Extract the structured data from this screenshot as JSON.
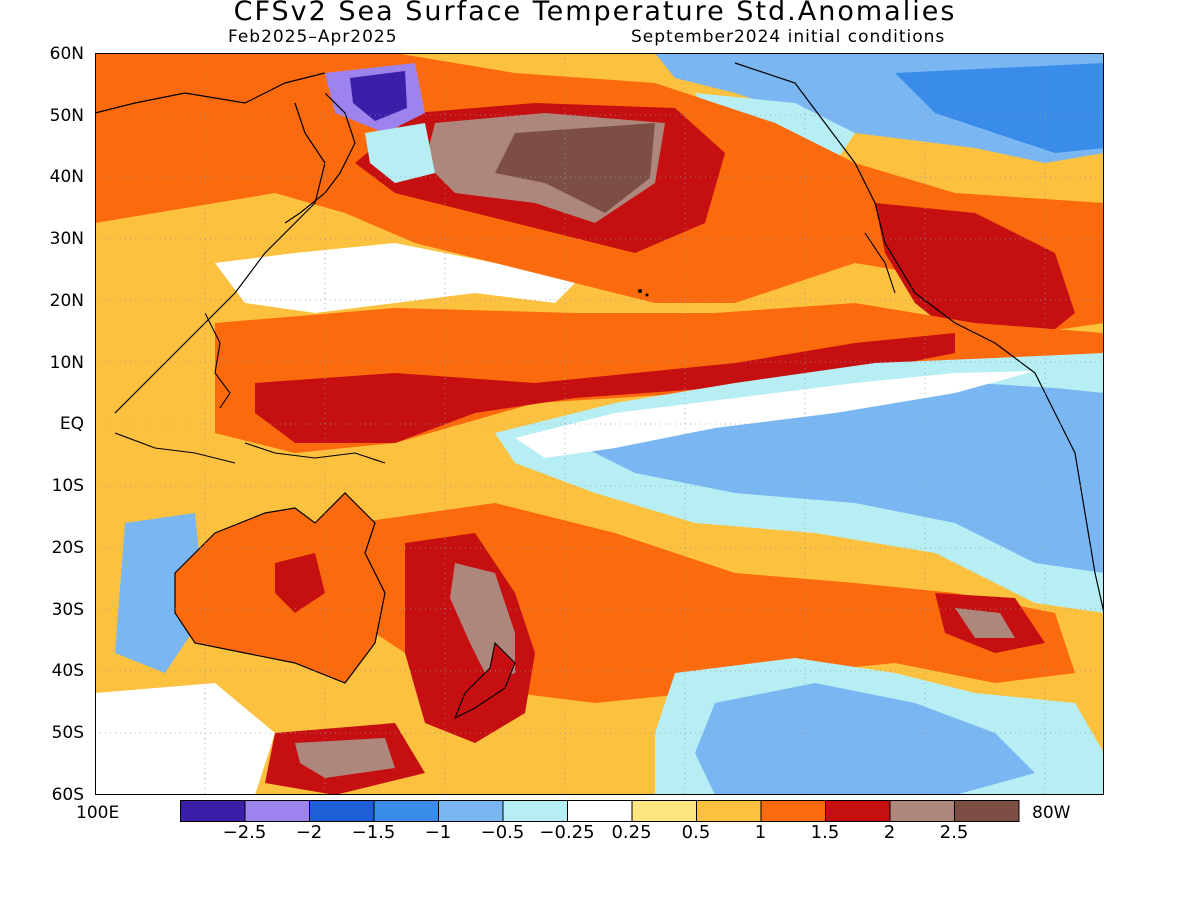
{
  "title": "CFSv2 Sea Surface Temperature Std.Anomalies",
  "period": "Feb2025–Apr2025",
  "initial_conditions": "September2024 initial conditions",
  "lat_labels": [
    "60N",
    "50N",
    "40N",
    "30N",
    "20N",
    "10N",
    "EQ",
    "10S",
    "20S",
    "30S",
    "40S",
    "50S",
    "60S"
  ],
  "lon_labels": {
    "west": "100E",
    "east": "80W"
  },
  "colorbar": {
    "colors": [
      "#3a1fa8",
      "#9d83ee",
      "#1e5fd8",
      "#3a8cea",
      "#79b6f2",
      "#b6eef4",
      "#ffffff",
      "#fde680",
      "#fcc13f",
      "#fb6a0d",
      "#c50f10",
      "#ae877c",
      "#7d4f44"
    ],
    "labels": [
      "−2.5",
      "−2",
      "−1.5",
      "−1",
      "−0.5",
      "−0.25",
      "0.25",
      "0.5",
      "1",
      "1.5",
      "2",
      "2.5"
    ]
  }
}
